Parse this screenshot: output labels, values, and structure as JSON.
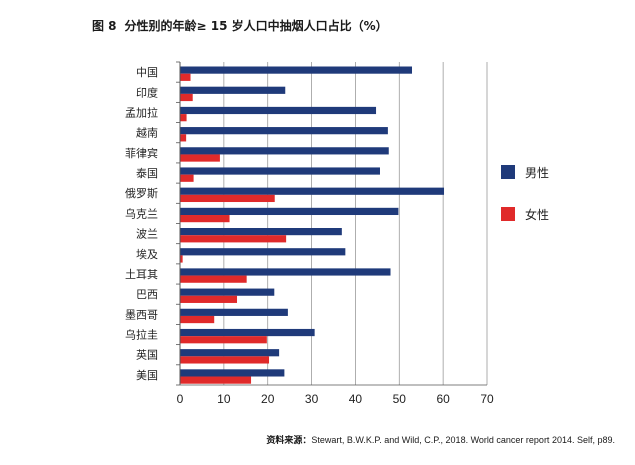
{
  "figure": {
    "label": "图 8",
    "title": "分性别的年龄≥ 15 岁人口中抽烟人口占比（%）"
  },
  "source": {
    "label": "资料来源：",
    "text": "Stewart, B.W.K.P. and Wild, C.P., 2018. World cancer report 2014. Self, p89."
  },
  "chart_data": {
    "type": "bar",
    "orientation": "horizontal",
    "title": "分性别的年龄≥ 15 岁人口中抽烟人口占比（%）",
    "categories": [
      "中国",
      "印度",
      "孟加拉",
      "越南",
      "菲律宾",
      "泰国",
      "俄罗斯",
      "乌克兰",
      "波兰",
      "埃及",
      "土耳其",
      "巴西",
      "墨西哥",
      "乌拉圭",
      "英国",
      "美国"
    ],
    "series": [
      {
        "name": "男性",
        "color": "#1f3a7a",
        "values": [
          52.9,
          24.0,
          44.7,
          47.4,
          47.6,
          45.6,
          60.2,
          49.8,
          36.9,
          37.7,
          48.0,
          21.5,
          24.6,
          30.7,
          22.6,
          23.8
        ]
      },
      {
        "name": "女性",
        "color": "#e02a2a",
        "values": [
          2.4,
          2.9,
          1.5,
          1.4,
          9.1,
          3.1,
          21.6,
          11.3,
          24.2,
          0.6,
          15.2,
          13.0,
          7.8,
          19.8,
          20.3,
          16.2
        ]
      }
    ],
    "xticks": [
      0,
      10,
      20,
      30,
      40,
      50,
      60,
      70
    ],
    "xlim": [
      0,
      70
    ],
    "xlabel": "",
    "ylabel": "",
    "grid": true,
    "legend": "right"
  }
}
